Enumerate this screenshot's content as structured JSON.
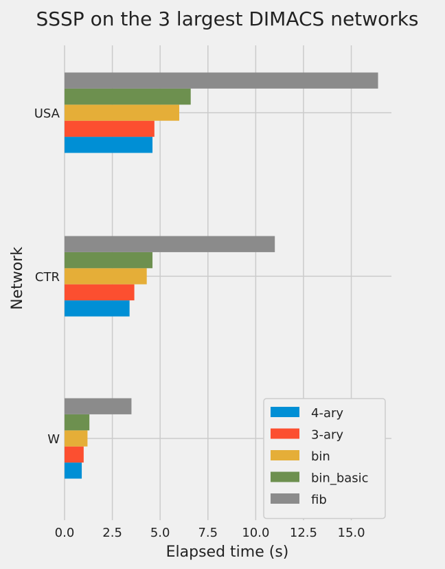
{
  "chart_data": {
    "type": "bar",
    "orientation": "horizontal",
    "title": "SSSP on the 3 largest DIMACS networks",
    "xlabel": "Elapsed time (s)",
    "ylabel": "Network",
    "categories": [
      "W",
      "CTR",
      "USA"
    ],
    "xlim": [
      0,
      17.1
    ],
    "xticks": [
      "0.0",
      "2.5",
      "5.0",
      "7.5",
      "10.0",
      "12.5",
      "15.0"
    ],
    "grid": true,
    "legend_position": "lower-right",
    "series": [
      {
        "name": "4-ary",
        "color": "#008fd5",
        "values": [
          0.9,
          3.4,
          4.6
        ]
      },
      {
        "name": "3-ary",
        "color": "#fc4f30",
        "values": [
          1.0,
          3.65,
          4.7
        ]
      },
      {
        "name": "bin",
        "color": "#e5ae38",
        "values": [
          1.2,
          4.3,
          6.0
        ]
      },
      {
        "name": "bin_basic",
        "color": "#6d904f",
        "values": [
          1.3,
          4.6,
          6.6
        ]
      },
      {
        "name": "fib",
        "color": "#8b8b8b",
        "values": [
          3.5,
          11.0,
          16.4
        ]
      }
    ]
  }
}
